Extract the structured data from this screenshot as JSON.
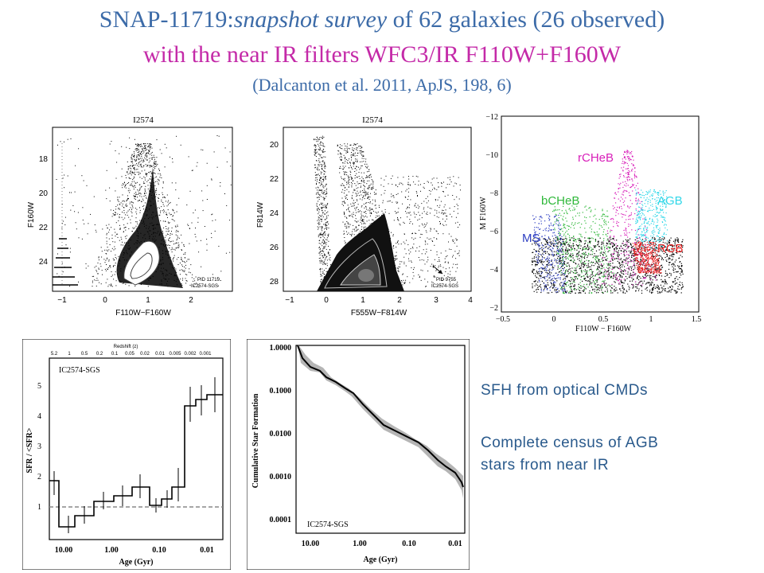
{
  "header": {
    "line1_prefix": "SNAP-11719:",
    "line1_italic": "snapshot survey",
    "line1_mid": " of  62 galaxies ",
    "line1_suffix": "  (26 observed)",
    "line2": "with the near IR filters   WFC3/IR  F110W+F160W",
    "line3": "(Dalcanton et al. 2011, ApJS, 198, 6)"
  },
  "cmd1": {
    "title": "I2574",
    "xlabel": "F110W−F160W",
    "ylabel": "F160W",
    "x_ticks": [
      "−1",
      "0",
      "1",
      "2"
    ],
    "y_ticks": [
      "18",
      "20",
      "22",
      "24"
    ],
    "note1": "PID 11719",
    "note2": "IC2574-SGS"
  },
  "cmd2": {
    "title": "I2574",
    "xlabel": "F555W−F814W",
    "ylabel": "F814W",
    "x_ticks": [
      "−1",
      "0",
      "1",
      "2",
      "3",
      "4"
    ],
    "y_ticks": [
      "20",
      "22",
      "24",
      "26",
      "28"
    ],
    "note1": "PID 9755",
    "note2": "IC2574-SGS"
  },
  "cmd3": {
    "xlabel": "F110W  −  F160W",
    "ylabel": "M F160W",
    "x_ticks": [
      "−0.5",
      "0",
      "0.5",
      "1",
      "1.5"
    ],
    "y_ticks": [
      "−12",
      "−10",
      "−8",
      "−6",
      "−4",
      "−2"
    ],
    "labels": {
      "rcheb": "rCHeB",
      "bcheb": "bCHeB",
      "agb": "AGB",
      "ms": "MS",
      "rgb": "RGB"
    },
    "colors": {
      "rcheb": "#d81fb9",
      "bcheb": "#2fb83a",
      "agb": "#30d7e8",
      "ms": "#2e3fc2",
      "rgb": "#e81e1e"
    }
  },
  "sfr": {
    "label": "IC2574-SGS",
    "top_axis_label": "Redshift (z)",
    "top_ticks": [
      "5.2",
      "1",
      "0.5",
      "0.2",
      "0.1",
      "0.05",
      "0.02",
      "0.01",
      "0.005",
      "0.002",
      "0.001"
    ],
    "ylabel": "SFR / <SFR>",
    "xlabel": "Age (Gyr)",
    "x_ticks": [
      "10.00",
      "1.00",
      "0.10",
      "0.01"
    ],
    "y_ticks": [
      "1",
      "2",
      "3",
      "4",
      "5"
    ]
  },
  "csf": {
    "label": "IC2574-SGS",
    "ylabel": "Cumulative Star Formation",
    "xlabel": "Age (Gyr)",
    "x_ticks": [
      "10.00",
      "1.00",
      "0.10",
      "0.01"
    ],
    "y_ticks": [
      "1.0000",
      "0.1000",
      "0.0100",
      "0.0010",
      "0.0001"
    ]
  },
  "text": {
    "sfh": "SFH from optical CMDs",
    "census_line1": "Complete census of AGB",
    "census_line2": "stars from near IR"
  }
}
